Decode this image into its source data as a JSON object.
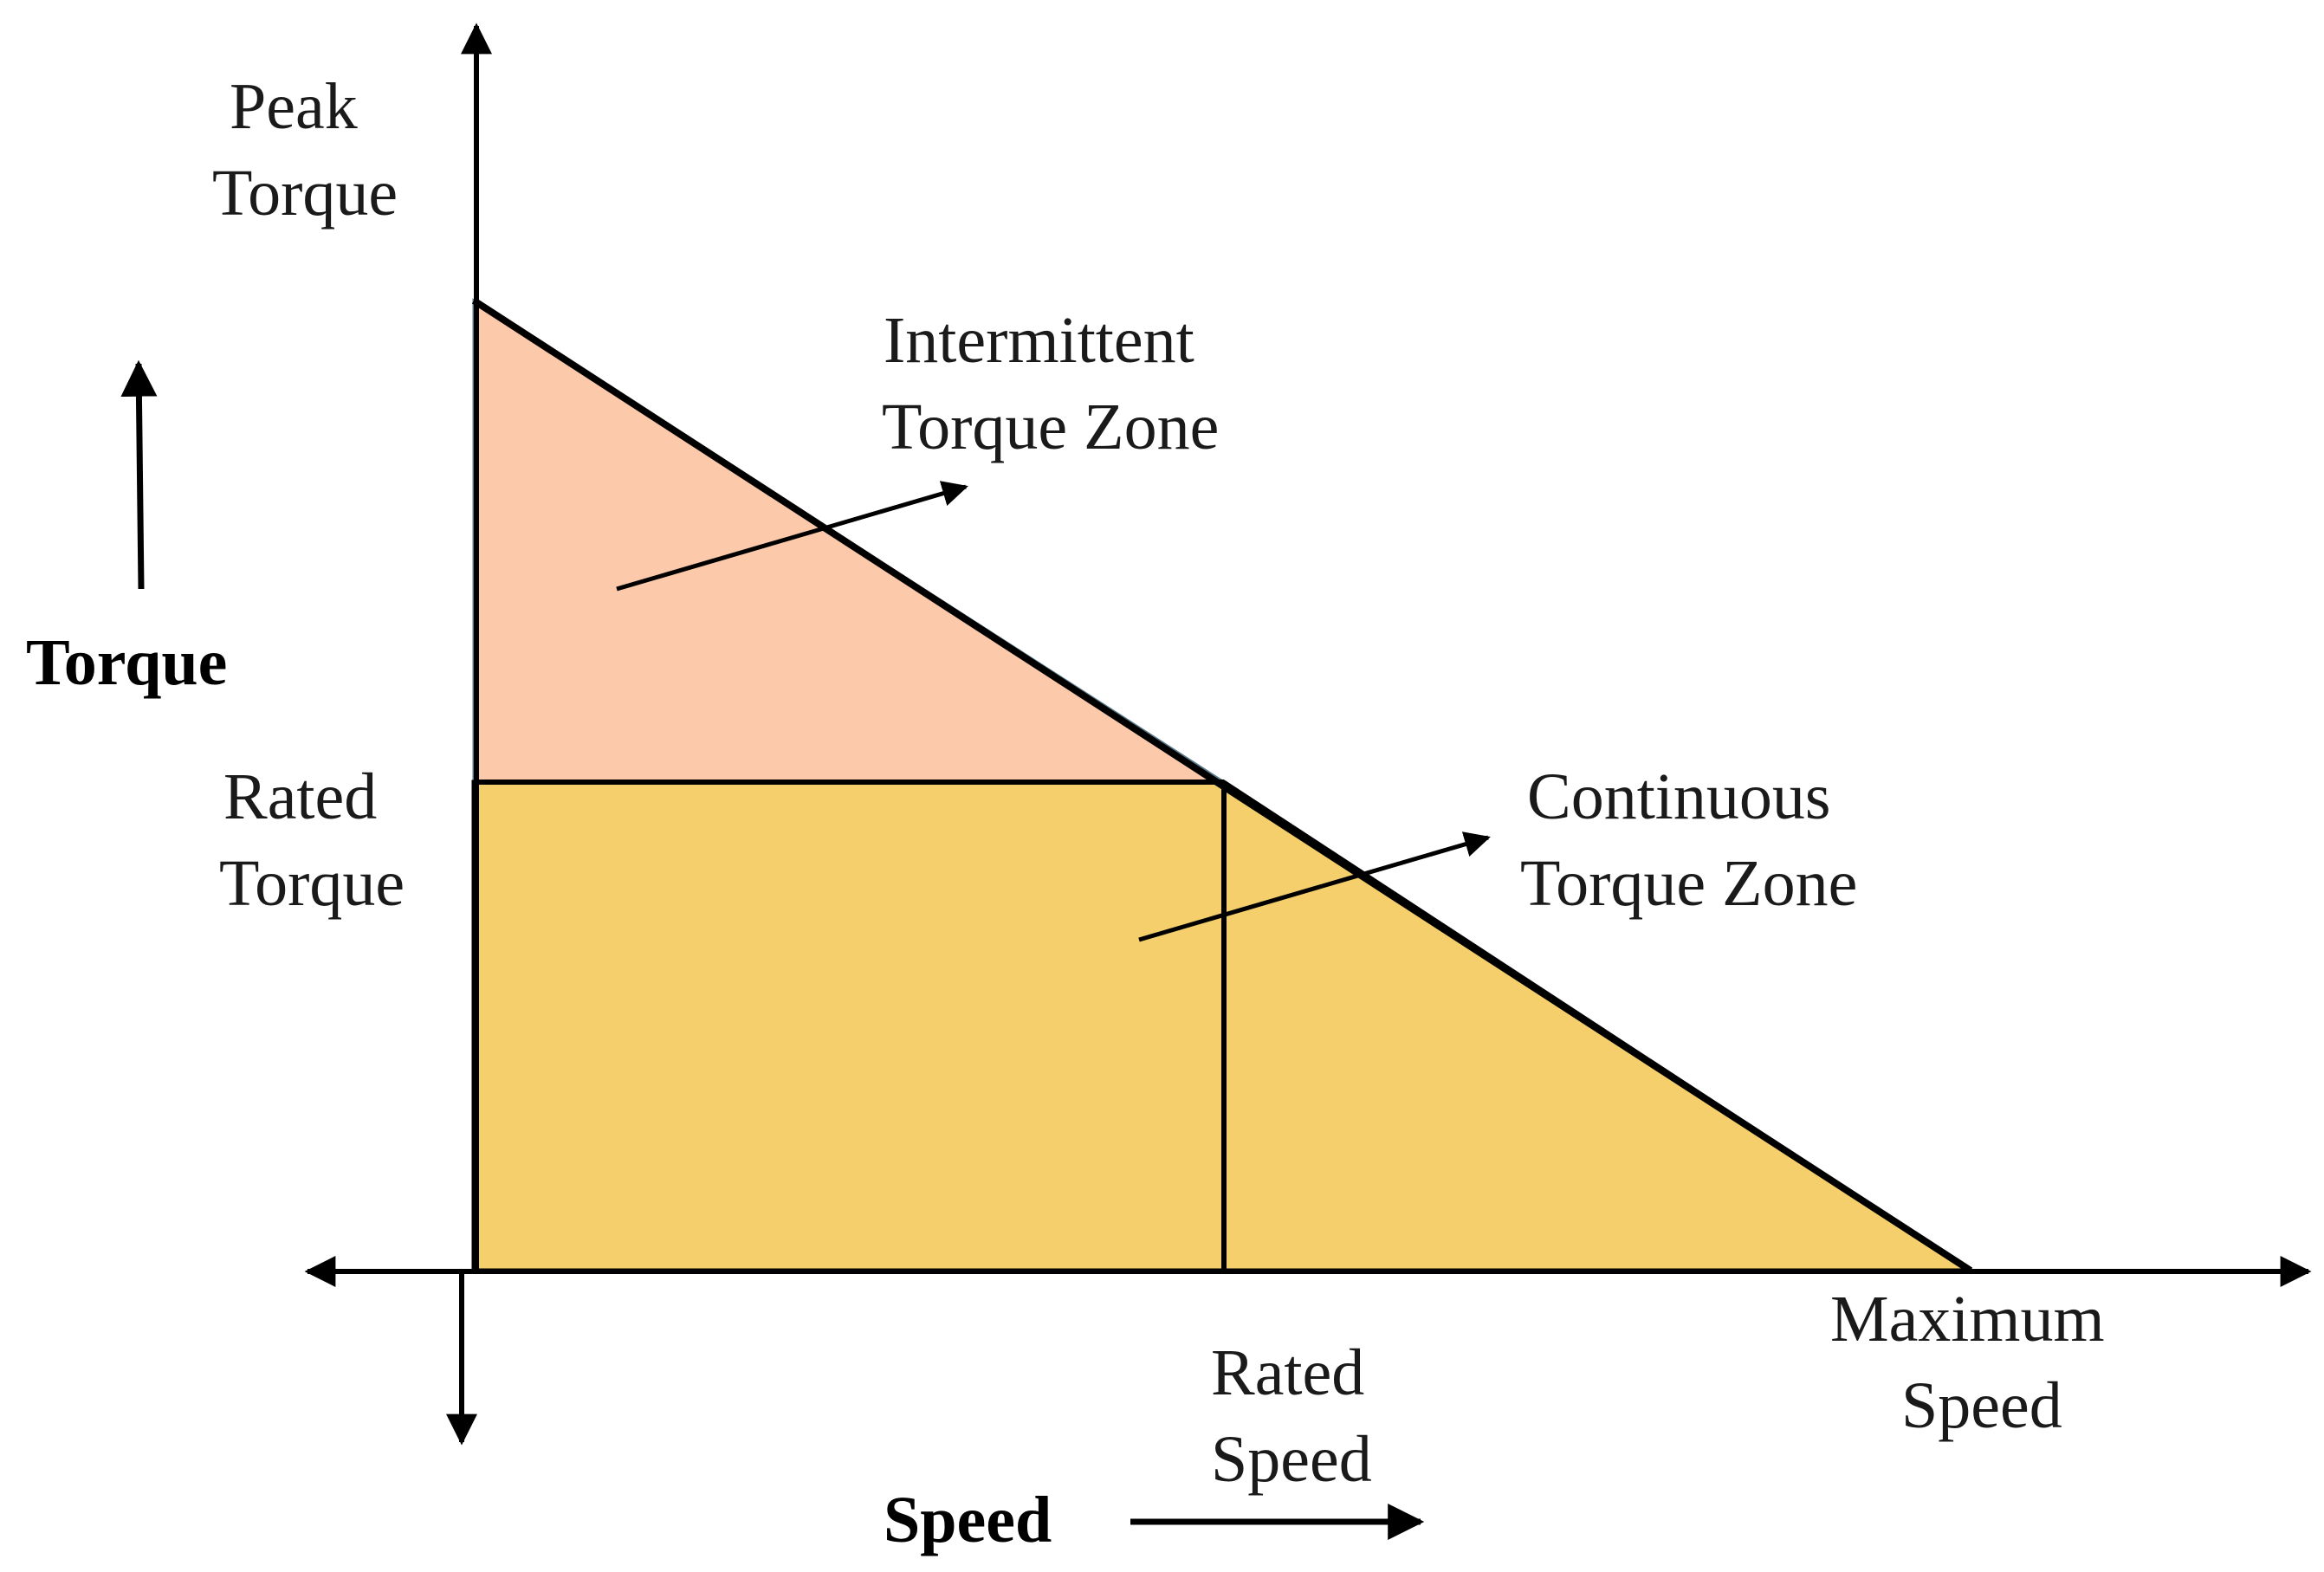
{
  "labels": {
    "peak_torque": [
      "Peak",
      "Torque"
    ],
    "rated_torque": [
      "Rated",
      "Torque"
    ],
    "y_axis": "Torque",
    "x_axis": "Speed",
    "rated_speed": [
      "Rated",
      "Speed"
    ],
    "maximum_speed": [
      "Maximum",
      "Speed"
    ],
    "intermittent_zone": [
      "Intermittent",
      "Torque Zone"
    ],
    "continuous_zone": [
      "Continuous",
      "Torque Zone"
    ]
  },
  "colors": {
    "intermittent_fill": "#fccaab",
    "continuous_fill": "#f5cf6c",
    "line": "#000000"
  }
}
